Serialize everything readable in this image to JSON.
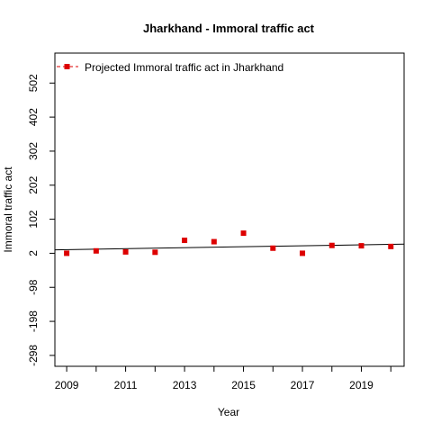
{
  "chart_data": {
    "type": "scatter",
    "title": "Jharkhand  -  Immoral traffic act",
    "xlabel": "Year",
    "ylabel": "Immoral traffic act",
    "xlim": [
      2008.6,
      2020.45
    ],
    "ylim": [
      -330,
      590
    ],
    "x_ticks": [
      2009,
      2010,
      2011,
      2012,
      2013,
      2014,
      2015,
      2016,
      2017,
      2018,
      2019,
      2020
    ],
    "x_tick_labels": [
      "2009",
      "",
      "2011",
      "",
      "2013",
      "",
      "2015",
      "",
      "2017",
      "",
      "2019",
      ""
    ],
    "y_ticks": [
      -298,
      -198,
      -98,
      2,
      102,
      202,
      302,
      402,
      502
    ],
    "y_tick_labels": [
      "-298",
      "-198",
      "-98",
      "2",
      "102",
      "202",
      "302",
      "402",
      "502"
    ],
    "series": [
      {
        "name": "Projected  Immoral traffic act  in  Jharkhand",
        "color": "#dd0000",
        "x": [
          2009,
          2010,
          2011,
          2012,
          2013,
          2014,
          2015,
          2016,
          2017,
          2018,
          2019,
          2020
        ],
        "y": [
          2,
          9,
          6,
          5,
          40,
          36,
          61,
          17,
          2,
          25,
          24,
          22
        ]
      }
    ],
    "trend_line": {
      "x": [
        2008.6,
        2020.45
      ],
      "y": [
        12,
        29
      ]
    },
    "legend": {
      "position": "top-left",
      "style": "dashed-line-with-square"
    },
    "grid": false
  }
}
